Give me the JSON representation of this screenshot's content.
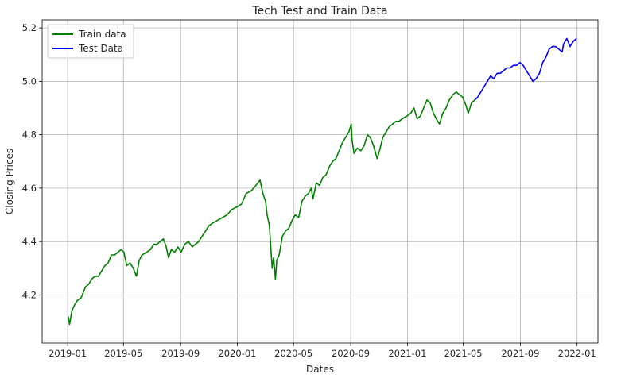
{
  "chart_data": {
    "type": "line",
    "title": "Tech Test and Train Data",
    "xlabel": "Dates",
    "ylabel": "Closing Prices",
    "x_is_date": true,
    "xlim": [
      "2018-11-07",
      "2022-02-15"
    ],
    "ylim": [
      4.02,
      5.23
    ],
    "x_ticks": [
      "2019-01-01",
      "2019-05-01",
      "2019-09-01",
      "2020-01-01",
      "2020-05-01",
      "2020-09-01",
      "2021-01-01",
      "2021-05-01",
      "2021-09-01",
      "2022-01-01"
    ],
    "x_tick_labels": [
      "2019-01",
      "2019-05",
      "2019-09",
      "2020-01",
      "2020-05",
      "2020-09",
      "2021-01",
      "2021-05",
      "2021-09",
      "2022-01"
    ],
    "y_ticks": [
      4.2,
      4.4,
      4.6,
      4.8,
      5.0,
      5.2
    ],
    "y_tick_labels": [
      "4.2",
      "4.4",
      "4.6",
      "4.8",
      "5.0",
      "5.2"
    ],
    "grid": true,
    "legend_position": "top-left",
    "series": [
      {
        "name": "Train data",
        "color": "#008000",
        "x": [
          "2019-01-02",
          "2019-01-05",
          "2019-01-10",
          "2019-01-15",
          "2019-01-22",
          "2019-01-30",
          "2019-02-08",
          "2019-02-15",
          "2019-02-22",
          "2019-03-01",
          "2019-03-08",
          "2019-03-15",
          "2019-03-22",
          "2019-03-29",
          "2019-04-05",
          "2019-04-12",
          "2019-04-19",
          "2019-04-26",
          "2019-05-02",
          "2019-05-08",
          "2019-05-15",
          "2019-05-22",
          "2019-05-29",
          "2019-06-04",
          "2019-06-10",
          "2019-06-20",
          "2019-06-28",
          "2019-07-05",
          "2019-07-12",
          "2019-07-19",
          "2019-07-26",
          "2019-08-01",
          "2019-08-06",
          "2019-08-12",
          "2019-08-19",
          "2019-08-26",
          "2019-09-02",
          "2019-09-10",
          "2019-09-18",
          "2019-09-26",
          "2019-10-03",
          "2019-10-10",
          "2019-10-17",
          "2019-10-25",
          "2019-11-01",
          "2019-11-10",
          "2019-11-20",
          "2019-11-30",
          "2019-12-10",
          "2019-12-20",
          "2019-12-31",
          "2020-01-10",
          "2020-01-20",
          "2020-01-31",
          "2020-02-10",
          "2020-02-19",
          "2020-02-25",
          "2020-03-02",
          "2020-03-05",
          "2020-03-10",
          "2020-03-13",
          "2020-03-16",
          "2020-03-19",
          "2020-03-23",
          "2020-03-26",
          "2020-03-31",
          "2020-04-07",
          "2020-04-14",
          "2020-04-21",
          "2020-04-28",
          "2020-05-05",
          "2020-05-12",
          "2020-05-19",
          "2020-05-26",
          "2020-06-02",
          "2020-06-08",
          "2020-06-12",
          "2020-06-19",
          "2020-06-26",
          "2020-07-03",
          "2020-07-10",
          "2020-07-17",
          "2020-07-24",
          "2020-07-31",
          "2020-08-07",
          "2020-08-14",
          "2020-08-21",
          "2020-08-28",
          "2020-09-02",
          "2020-09-04",
          "2020-09-08",
          "2020-09-15",
          "2020-09-23",
          "2020-09-30",
          "2020-10-07",
          "2020-10-13",
          "2020-10-20",
          "2020-10-28",
          "2020-11-02",
          "2020-11-09",
          "2020-11-16",
          "2020-11-23",
          "2020-11-30",
          "2020-12-07",
          "2020-12-14",
          "2020-12-21",
          "2020-12-31",
          "2021-01-08",
          "2021-01-15",
          "2021-01-22",
          "2021-01-29",
          "2021-02-05",
          "2021-02-12",
          "2021-02-19",
          "2021-02-26",
          "2021-03-04",
          "2021-03-11",
          "2021-03-18",
          "2021-03-25",
          "2021-04-01",
          "2021-04-09",
          "2021-04-16",
          "2021-04-23",
          "2021-04-30",
          "2021-05-07",
          "2021-05-12",
          "2021-05-19",
          "2021-05-26"
        ],
        "y": [
          4.12,
          4.09,
          4.14,
          4.16,
          4.18,
          4.19,
          4.23,
          4.24,
          4.26,
          4.27,
          4.27,
          4.29,
          4.31,
          4.32,
          4.35,
          4.35,
          4.36,
          4.37,
          4.36,
          4.31,
          4.32,
          4.3,
          4.27,
          4.33,
          4.35,
          4.36,
          4.37,
          4.39,
          4.39,
          4.4,
          4.41,
          4.38,
          4.34,
          4.37,
          4.36,
          4.38,
          4.36,
          4.39,
          4.4,
          4.38,
          4.39,
          4.4,
          4.42,
          4.44,
          4.46,
          4.47,
          4.48,
          4.49,
          4.5,
          4.52,
          4.53,
          4.54,
          4.58,
          4.59,
          4.61,
          4.63,
          4.58,
          4.55,
          4.5,
          4.46,
          4.38,
          4.3,
          4.34,
          4.26,
          4.33,
          4.35,
          4.42,
          4.44,
          4.45,
          4.48,
          4.5,
          4.49,
          4.55,
          4.57,
          4.58,
          4.6,
          4.56,
          4.62,
          4.61,
          4.64,
          4.65,
          4.68,
          4.7,
          4.71,
          4.74,
          4.77,
          4.79,
          4.81,
          4.84,
          4.78,
          4.73,
          4.75,
          4.74,
          4.76,
          4.8,
          4.79,
          4.76,
          4.71,
          4.74,
          4.79,
          4.81,
          4.83,
          4.84,
          4.85,
          4.85,
          4.86,
          4.87,
          4.88,
          4.9,
          4.86,
          4.87,
          4.9,
          4.93,
          4.92,
          4.88,
          4.86,
          4.84,
          4.88,
          4.9,
          4.93,
          4.95,
          4.96,
          4.95,
          4.94,
          4.91,
          4.88,
          4.92,
          4.93
        ]
      },
      {
        "name": "Test Data",
        "color": "#0000ff",
        "x": [
          "2021-05-26",
          "2021-06-01",
          "2021-06-08",
          "2021-06-15",
          "2021-06-22",
          "2021-06-29",
          "2021-07-06",
          "2021-07-13",
          "2021-07-20",
          "2021-07-27",
          "2021-08-03",
          "2021-08-10",
          "2021-08-17",
          "2021-08-24",
          "2021-08-31",
          "2021-09-07",
          "2021-09-14",
          "2021-09-21",
          "2021-09-28",
          "2021-10-05",
          "2021-10-12",
          "2021-10-19",
          "2021-10-26",
          "2021-11-02",
          "2021-11-09",
          "2021-11-16",
          "2021-11-23",
          "2021-11-30",
          "2021-12-03",
          "2021-12-10",
          "2021-12-17",
          "2021-12-24",
          "2021-12-31"
        ],
        "y": [
          4.93,
          4.94,
          4.96,
          4.98,
          5.0,
          5.02,
          5.01,
          5.03,
          5.03,
          5.04,
          5.05,
          5.05,
          5.06,
          5.06,
          5.07,
          5.06,
          5.04,
          5.02,
          5.0,
          5.01,
          5.03,
          5.07,
          5.09,
          5.12,
          5.13,
          5.13,
          5.12,
          5.11,
          5.14,
          5.16,
          5.13,
          5.15,
          5.16
        ]
      }
    ]
  }
}
